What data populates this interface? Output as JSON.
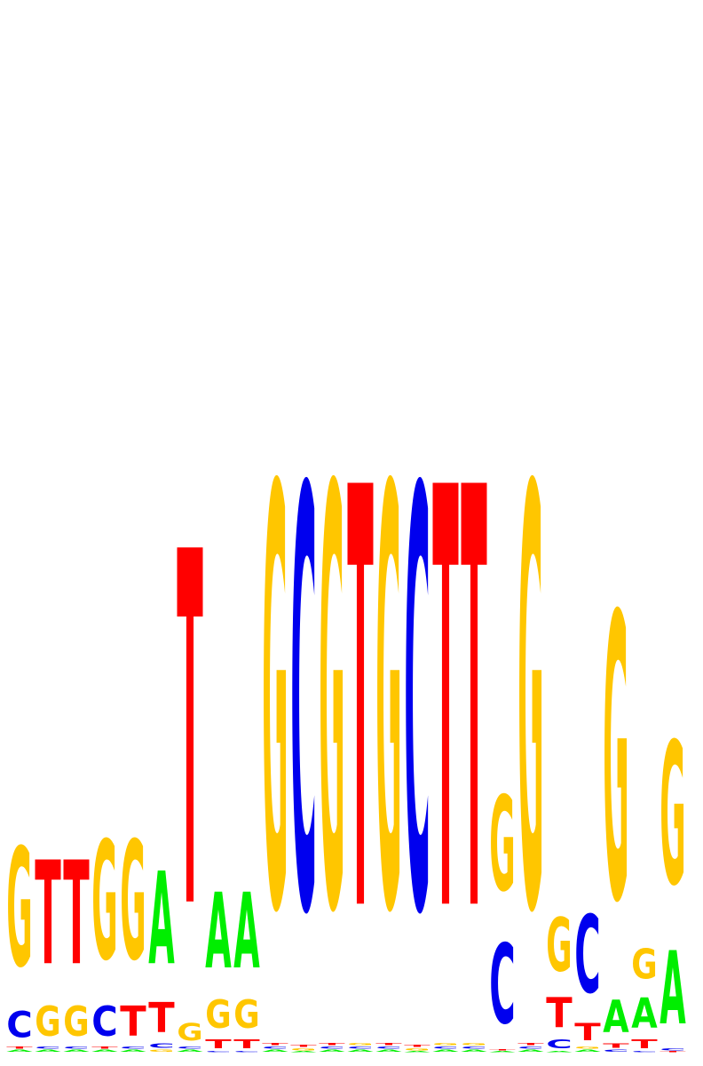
{
  "colors": {
    "A": "#00ee00",
    "C": "#0000ee",
    "G": "#ffc600",
    "T": "#ff0000"
  },
  "chart_data": {
    "type": "sequence-logo",
    "title": "",
    "xlabel": "",
    "ylabel": "",
    "ylim": [
      0,
      2
    ],
    "alphabet": [
      "A",
      "C",
      "G",
      "T"
    ],
    "positions": [
      {
        "A": 0.01,
        "C": 0.12,
        "G": 0.55,
        "T": 0.01
      },
      {
        "A": 0.01,
        "C": 0.01,
        "G": 0.14,
        "T": 0.48
      },
      {
        "A": 0.01,
        "C": 0.01,
        "G": 0.14,
        "T": 0.48
      },
      {
        "A": 0.01,
        "C": 0.14,
        "G": 0.55,
        "T": 0.01
      },
      {
        "A": 0.01,
        "C": 0.01,
        "G": 0.55,
        "T": 0.14
      },
      {
        "A": 0.43,
        "C": 0.02,
        "G": 0.01,
        "T": 0.14
      },
      {
        "A": 0.01,
        "C": 0.01,
        "G": 0.08,
        "T": 1.64
      },
      {
        "A": 0.35,
        "C": 0.005,
        "G": 0.13,
        "T": 0.04
      },
      {
        "A": 0.35,
        "C": 0.005,
        "G": 0.13,
        "T": 0.04
      },
      {
        "A": 0.01,
        "C": 0.01,
        "G": 1.95,
        "T": 0.01
      },
      {
        "A": 0.005,
        "C": 1.95,
        "G": 0.01,
        "T": 0.01
      },
      {
        "A": 0.01,
        "C": 0.01,
        "G": 1.95,
        "T": 0.01
      },
      {
        "A": 0.01,
        "C": 0.01,
        "G": 0.01,
        "T": 1.95
      },
      {
        "A": 0.01,
        "C": 0.01,
        "G": 1.95,
        "T": 0.01
      },
      {
        "A": 0.005,
        "C": 1.95,
        "G": 0.01,
        "T": 0.01
      },
      {
        "A": 0.01,
        "C": 0.01,
        "G": 0.01,
        "T": 1.95
      },
      {
        "A": 0.01,
        "C": 0.01,
        "G": 0.01,
        "T": 1.95
      },
      {
        "A": 0.005,
        "C": 0.37,
        "G": 0.44,
        "T": 0.005
      },
      {
        "A": 0.01,
        "C": 0.01,
        "G": 1.95,
        "T": 0.01
      },
      {
        "A": 0.005,
        "C": 0.04,
        "G": 0.25,
        "T": 0.14
      },
      {
        "A": 0.01,
        "C": 0.36,
        "G": 0.01,
        "T": 0.08
      },
      {
        "A": 0.15,
        "C": 0.01,
        "G": 1.32,
        "T": 0.02
      },
      {
        "A": 0.14,
        "C": 0.005,
        "G": 0.14,
        "T": 0.04
      },
      {
        "A": 0.34,
        "C": 0.01,
        "G": 0.66,
        "T": 0.005
      }
    ]
  }
}
